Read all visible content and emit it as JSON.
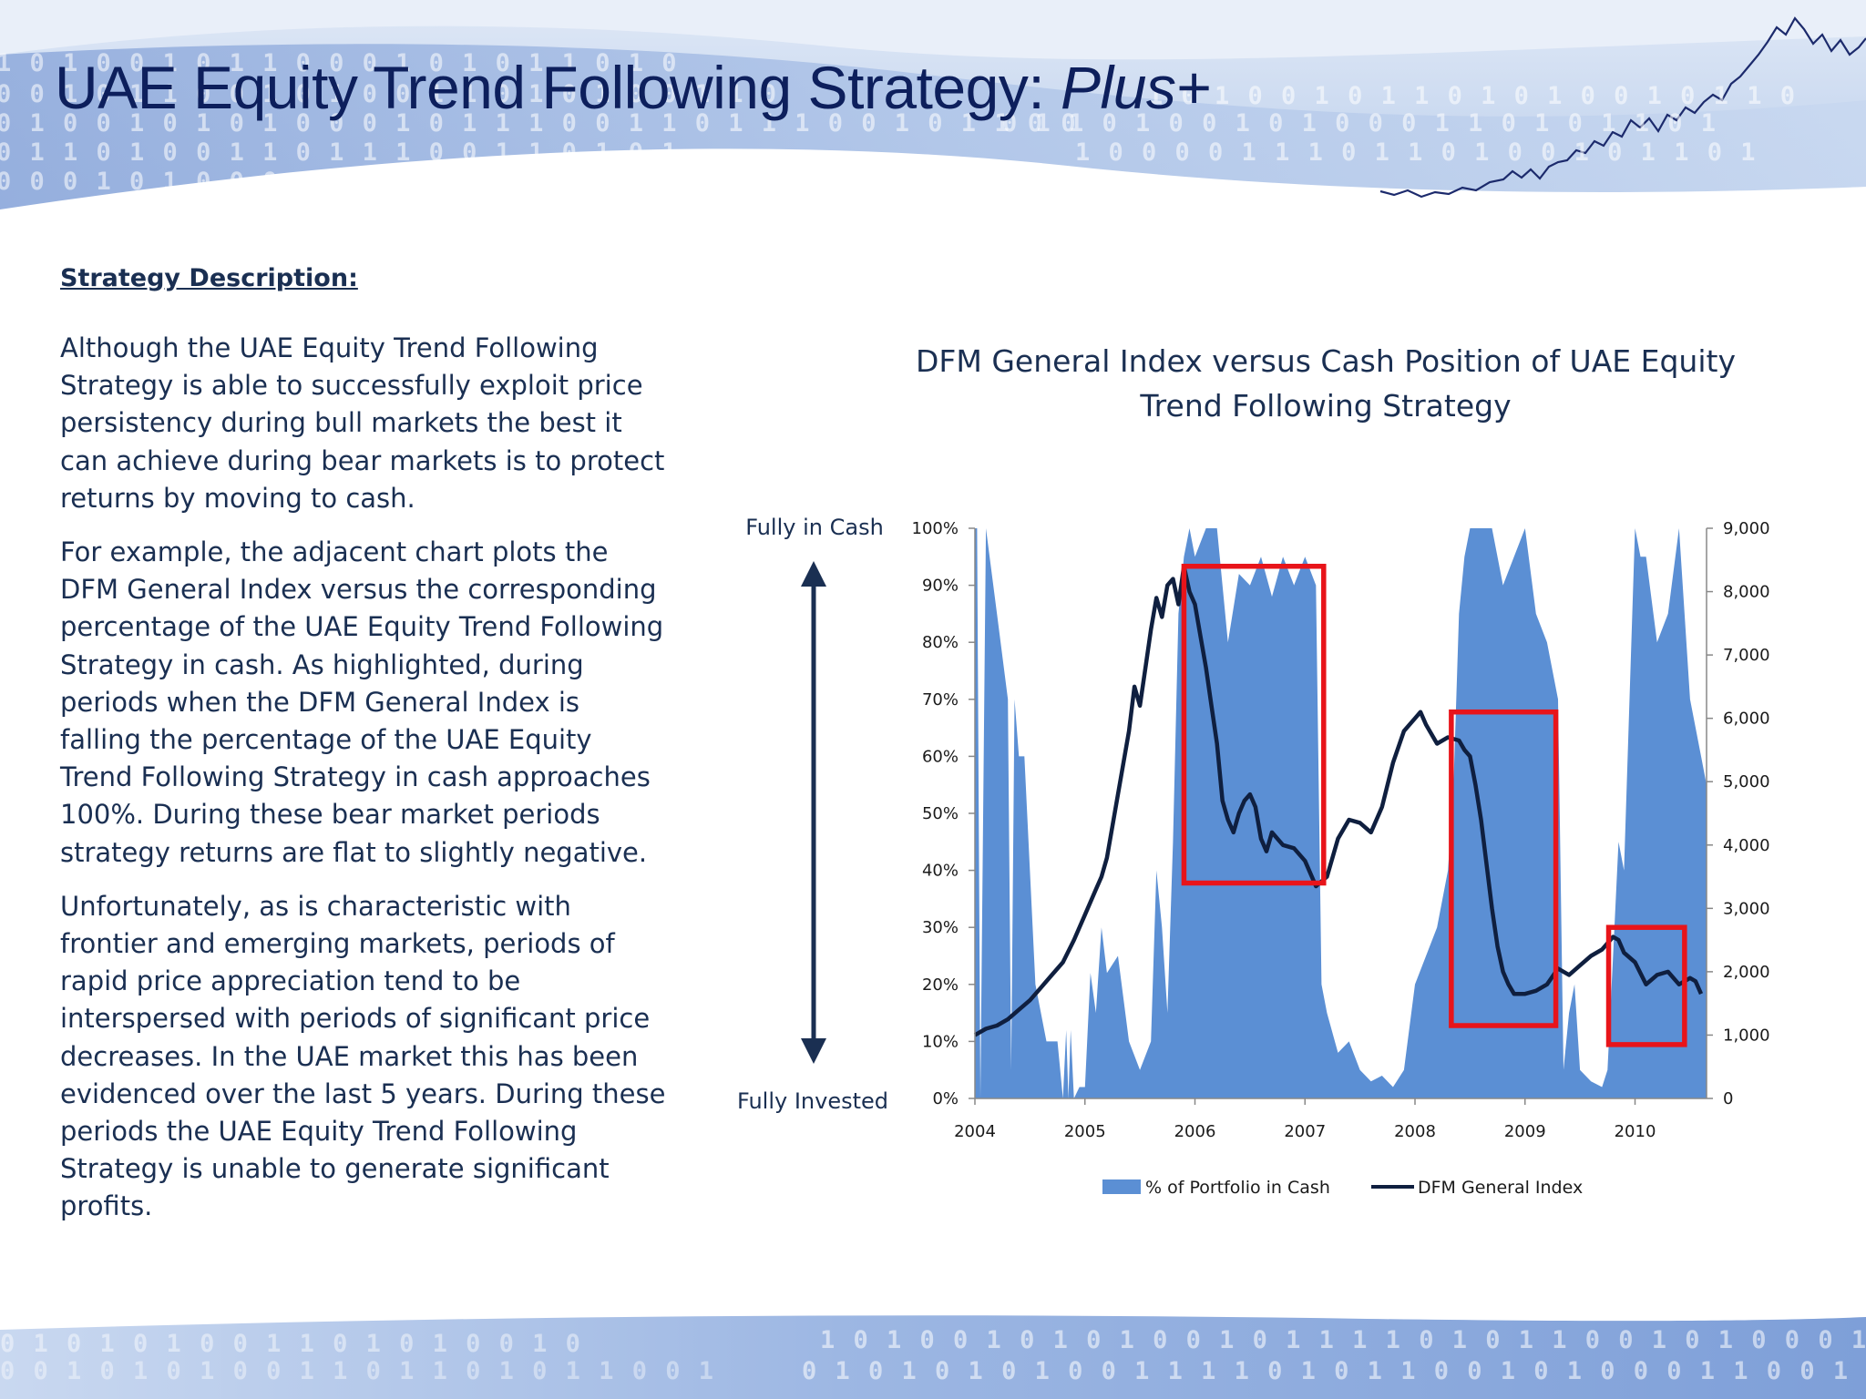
{
  "header": {
    "title_main": "UAE Equity Trend Following Strategy: ",
    "title_emph": "Plus+"
  },
  "description": {
    "heading": "Strategy Description:",
    "paragraphs": [
      "Although the UAE Equity Trend Following Strategy is able to successfully exploit price persistency during bull markets the best it can achieve during bear markets is to protect returns by moving to cash.",
      "For example, the adjacent chart plots the DFM General Index versus the corresponding percentage of the UAE Equity Trend Following Strategy in cash.  As highlighted, during periods when the DFM General Index is falling the percentage of the UAE Equity Trend Following Strategy in cash approaches 100%. During these bear market periods strategy returns are flat to slightly negative.",
      "Unfortunately, as is characteristic with frontier and emerging markets, periods of rapid price appreciation tend to be interspersed with periods of significant price decreases.  In the UAE market this has been evidenced over the last 5 years.  During these periods the UAE Equity Trend Following Strategy is unable to generate significant profits."
    ]
  },
  "chart_data": {
    "type": "area",
    "title": "DFM General Index versus Cash Position of UAE Equity Trend Following Strategy",
    "annotations": {
      "top": "Fully in Cash",
      "bottom": "Fully Invested"
    },
    "x_range": [
      2004.0,
      2010.65
    ],
    "x_ticks": [
      "2004",
      "2005",
      "2006",
      "2007",
      "2008",
      "2009",
      "2010"
    ],
    "y_left": {
      "range": [
        0,
        100
      ],
      "ticks": [
        "0%",
        "10%",
        "20%",
        "30%",
        "40%",
        "50%",
        "60%",
        "70%",
        "80%",
        "90%",
        "100%"
      ]
    },
    "y_right": {
      "range": [
        0,
        9000
      ],
      "ticks": [
        "0",
        "1,000",
        "2,000",
        "3,000",
        "4,000",
        "5,000",
        "6,000",
        "7,000",
        "8,000",
        "9,000"
      ]
    },
    "legend": {
      "position": "bottom",
      "cash_label": "% of Portfolio in Cash",
      "index_label": "DFM General Index"
    },
    "grid": false,
    "colors": {
      "cash": "#5b8fd4",
      "index": "#0f1f3f",
      "highlight": "#e8141a",
      "arrow": "#1a2f52"
    },
    "series": [
      {
        "name": "% of Portfolio in Cash",
        "axis": "left",
        "x": [
          2004.0,
          2004.02,
          2004.05,
          2004.1,
          2004.2,
          2004.3,
          2004.33,
          2004.36,
          2004.4,
          2004.45,
          2004.55,
          2004.65,
          2004.75,
          2004.8,
          2004.83,
          2004.85,
          2004.87,
          2004.9,
          2004.95,
          2005.0,
          2005.05,
          2005.1,
          2005.15,
          2005.2,
          2005.3,
          2005.4,
          2005.5,
          2005.6,
          2005.65,
          2005.7,
          2005.75,
          2005.8,
          2005.85,
          2005.9,
          2005.95,
          2006.0,
          2006.1,
          2006.2,
          2006.3,
          2006.4,
          2006.5,
          2006.6,
          2006.7,
          2006.8,
          2006.9,
          2007.0,
          2007.1,
          2007.15,
          2007.2,
          2007.3,
          2007.4,
          2007.5,
          2007.6,
          2007.7,
          2007.8,
          2007.9,
          2008.0,
          2008.1,
          2008.2,
          2008.3,
          2008.35,
          2008.4,
          2008.45,
          2008.5,
          2008.6,
          2008.7,
          2008.8,
          2008.9,
          2009.0,
          2009.1,
          2009.2,
          2009.3,
          2009.35,
          2009.4,
          2009.45,
          2009.5,
          2009.6,
          2009.7,
          2009.75,
          2009.8,
          2009.85,
          2009.9,
          2010.0,
          2010.05,
          2010.1,
          2010.2,
          2010.3,
          2010.4,
          2010.5,
          2010.6,
          2010.65
        ],
        "values": [
          100,
          100,
          0,
          100,
          85,
          70,
          5,
          70,
          60,
          60,
          20,
          10,
          10,
          0,
          12,
          0,
          12,
          0,
          2,
          2,
          22,
          15,
          30,
          22,
          25,
          10,
          5,
          10,
          40,
          30,
          15,
          45,
          85,
          95,
          100,
          95,
          100,
          100,
          80,
          92,
          90,
          95,
          88,
          95,
          90,
          95,
          90,
          20,
          15,
          8,
          10,
          5,
          3,
          4,
          2,
          5,
          20,
          25,
          30,
          40,
          55,
          85,
          95,
          100,
          100,
          100,
          90,
          95,
          100,
          85,
          80,
          70,
          5,
          15,
          20,
          5,
          3,
          2,
          5,
          25,
          45,
          40,
          100,
          95,
          95,
          80,
          85,
          100,
          70,
          60,
          55
        ]
      },
      {
        "name": "DFM General Index",
        "axis": "right",
        "x": [
          2004.0,
          2004.1,
          2004.2,
          2004.3,
          2004.4,
          2004.5,
          2004.6,
          2004.7,
          2004.8,
          2004.9,
          2005.0,
          2005.1,
          2005.15,
          2005.2,
          2005.3,
          2005.4,
          2005.45,
          2005.5,
          2005.55,
          2005.6,
          2005.65,
          2005.7,
          2005.75,
          2005.8,
          2005.85,
          2005.9,
          2005.95,
          2006.0,
          2006.05,
          2006.1,
          2006.15,
          2006.2,
          2006.25,
          2006.3,
          2006.35,
          2006.4,
          2006.45,
          2006.5,
          2006.55,
          2006.6,
          2006.65,
          2006.7,
          2006.8,
          2006.9,
          2007.0,
          2007.1,
          2007.2,
          2007.3,
          2007.4,
          2007.5,
          2007.6,
          2007.7,
          2007.8,
          2007.9,
          2008.0,
          2008.05,
          2008.1,
          2008.2,
          2008.3,
          2008.4,
          2008.45,
          2008.5,
          2008.55,
          2008.6,
          2008.65,
          2008.7,
          2008.75,
          2008.8,
          2008.85,
          2008.9,
          2009.0,
          2009.1,
          2009.2,
          2009.3,
          2009.4,
          2009.5,
          2009.6,
          2009.7,
          2009.8,
          2009.85,
          2009.9,
          2010.0,
          2010.1,
          2010.2,
          2010.3,
          2010.4,
          2010.5,
          2010.55,
          2010.6
        ],
        "values": [
          1000,
          1100,
          1150,
          1250,
          1400,
          1550,
          1750,
          1950,
          2150,
          2500,
          2900,
          3300,
          3500,
          3800,
          4800,
          5800,
          6500,
          6200,
          6800,
          7400,
          7900,
          7600,
          8100,
          8200,
          7800,
          8400,
          8000,
          7800,
          7300,
          6800,
          6200,
          5600,
          4700,
          4400,
          4200,
          4500,
          4700,
          4800,
          4600,
          4100,
          3900,
          4200,
          4000,
          3950,
          3750,
          3350,
          3500,
          4100,
          4400,
          4350,
          4200,
          4600,
          5300,
          5800,
          6000,
          6100,
          5900,
          5600,
          5700,
          5650,
          5500,
          5400,
          4950,
          4400,
          3700,
          3000,
          2400,
          2000,
          1800,
          1650,
          1650,
          1700,
          1800,
          2050,
          1950,
          2100,
          2250,
          2350,
          2550,
          2500,
          2300,
          2150,
          1800,
          1950,
          2000,
          1800,
          1900,
          1850,
          1650
        ]
      }
    ],
    "highlight_boxes": [
      {
        "x0": 2005.9,
        "x1": 2007.17,
        "y0": 3400,
        "y1": 8400
      },
      {
        "x0": 2008.33,
        "x1": 2009.28,
        "y0": 1150,
        "y1": 6100
      },
      {
        "x0": 2009.76,
        "x1": 2010.45,
        "y0": 850,
        "y1": 2700
      }
    ]
  }
}
